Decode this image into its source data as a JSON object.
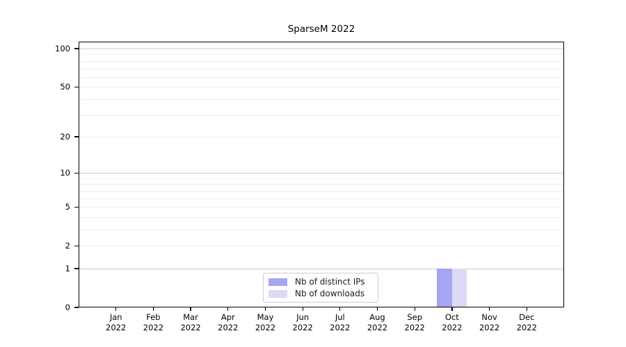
{
  "title": "SparseM 2022",
  "chart_data": {
    "type": "bar",
    "title": "SparseM 2022",
    "categories": [
      {
        "month": "Jan",
        "year": "2022"
      },
      {
        "month": "Feb",
        "year": "2022"
      },
      {
        "month": "Mar",
        "year": "2022"
      },
      {
        "month": "Apr",
        "year": "2022"
      },
      {
        "month": "May",
        "year": "2022"
      },
      {
        "month": "Jun",
        "year": "2022"
      },
      {
        "month": "Jul",
        "year": "2022"
      },
      {
        "month": "Aug",
        "year": "2022"
      },
      {
        "month": "Sep",
        "year": "2022"
      },
      {
        "month": "Oct",
        "year": "2022"
      },
      {
        "month": "Nov",
        "year": "2022"
      },
      {
        "month": "Dec",
        "year": "2022"
      }
    ],
    "series": [
      {
        "name": "Nb of distinct IPs",
        "color": "#a5a5f0",
        "values": [
          0,
          0,
          0,
          0,
          0,
          0,
          0,
          0,
          0,
          1,
          0,
          0
        ]
      },
      {
        "name": "Nb of downloads",
        "color": "#dbdbf7",
        "values": [
          0,
          0,
          0,
          0,
          0,
          0,
          0,
          0,
          0,
          1,
          0,
          0
        ]
      }
    ],
    "y_axis": {
      "scale": "log1p",
      "major_ticks": [
        0,
        1,
        2,
        5,
        10,
        20,
        50,
        100
      ],
      "decade_ticks": [
        1,
        10,
        100
      ],
      "minor_ticks": [
        3,
        4,
        6,
        7,
        8,
        9,
        30,
        40,
        60,
        70,
        80,
        90
      ],
      "ylim": [
        0,
        113
      ]
    },
    "legend": {
      "position": "bottom-center",
      "entries": [
        "Nb of distinct IPs",
        "Nb of downloads"
      ]
    },
    "grid": true
  },
  "colors": {
    "decade_gridline": "#c9c9c9",
    "minor_gridline": "#ededed",
    "axis": "#000000",
    "background": "#ffffff",
    "legend_border": "#cccccc",
    "bar_distinct_ips": "#a5a5f0",
    "bar_downloads": "#dbdbf7"
  }
}
